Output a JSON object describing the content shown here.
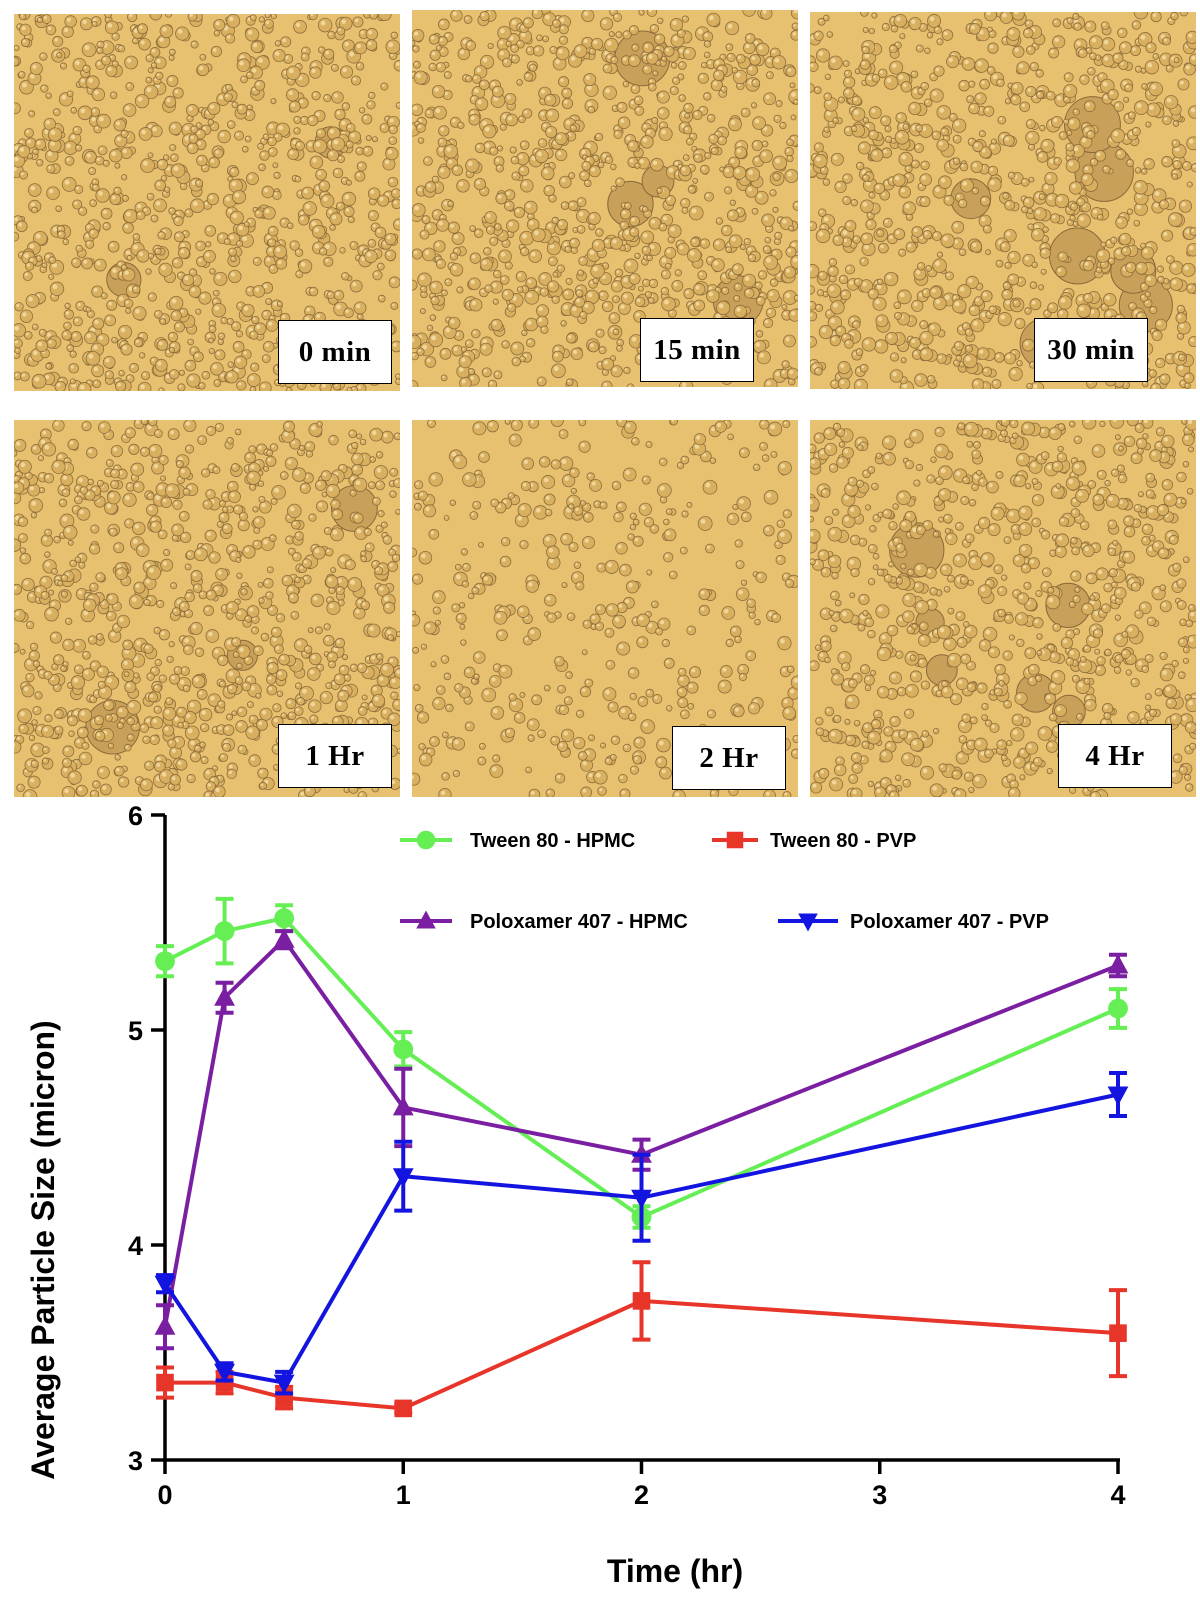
{
  "micrographs": [
    {
      "label": "0 min",
      "seed": 11,
      "density": 1.0,
      "big": 2
    },
    {
      "label": "15 min",
      "seed": 23,
      "density": 1.0,
      "big": 4
    },
    {
      "label": "30 min",
      "seed": 37,
      "density": 0.95,
      "big": 7
    },
    {
      "label": "1 Hr",
      "seed": 41,
      "density": 1.0,
      "big": 3
    },
    {
      "label": "2 Hr",
      "seed": 53,
      "density": 0.45,
      "big": 0
    },
    {
      "label": "4 Hr",
      "seed": 67,
      "density": 0.9,
      "big": 6
    }
  ],
  "micrograph_colors": {
    "background": "#e7c170",
    "droplet_fill": "#d9b060",
    "droplet_edge": "#8a6a3a",
    "droplet_highlight": "#f5e0a8",
    "big_fill": "#c9a05a"
  },
  "chart_data": {
    "type": "line",
    "xlabel": "Time (hr)",
    "ylabel": "Average Particle Size (micron)",
    "xlim": [
      0,
      4
    ],
    "ylim": [
      3,
      6
    ],
    "x_ticks": [
      0,
      1,
      2,
      3,
      4
    ],
    "y_ticks": [
      3,
      4,
      5,
      6
    ],
    "grid": false,
    "legend_placement": "top-right",
    "x": [
      0,
      0.25,
      0.5,
      1,
      2,
      4
    ],
    "series": [
      {
        "name": "Tween 80 - HPMC",
        "color": "#66ee55",
        "marker": "circle",
        "values": [
          5.32,
          5.46,
          5.52,
          4.91,
          4.13,
          5.1
        ],
        "errors": [
          0.07,
          0.15,
          0.06,
          0.08,
          0.05,
          0.09
        ]
      },
      {
        "name": "Tween 80 - PVP",
        "color": "#e8352a",
        "marker": "square",
        "values": [
          3.36,
          3.36,
          3.29,
          3.24,
          3.74,
          3.59
        ],
        "errors": [
          0.07,
          0.05,
          0.05,
          0.02,
          0.18,
          0.2
        ]
      },
      {
        "name": "Poloxamer 407 - HPMC",
        "color": "#7a1fa2",
        "marker": "triangle-up",
        "values": [
          3.62,
          5.15,
          5.42,
          4.64,
          4.42,
          5.3
        ],
        "errors": [
          0.1,
          0.07,
          0.04,
          0.18,
          0.07,
          0.05
        ]
      },
      {
        "name": "Poloxamer 407 - PVP",
        "color": "#1414e0",
        "marker": "triangle-down",
        "values": [
          3.82,
          3.41,
          3.36,
          4.32,
          4.22,
          4.7
        ],
        "errors": [
          0.04,
          0.04,
          0.05,
          0.16,
          0.2,
          0.1
        ]
      }
    ]
  }
}
